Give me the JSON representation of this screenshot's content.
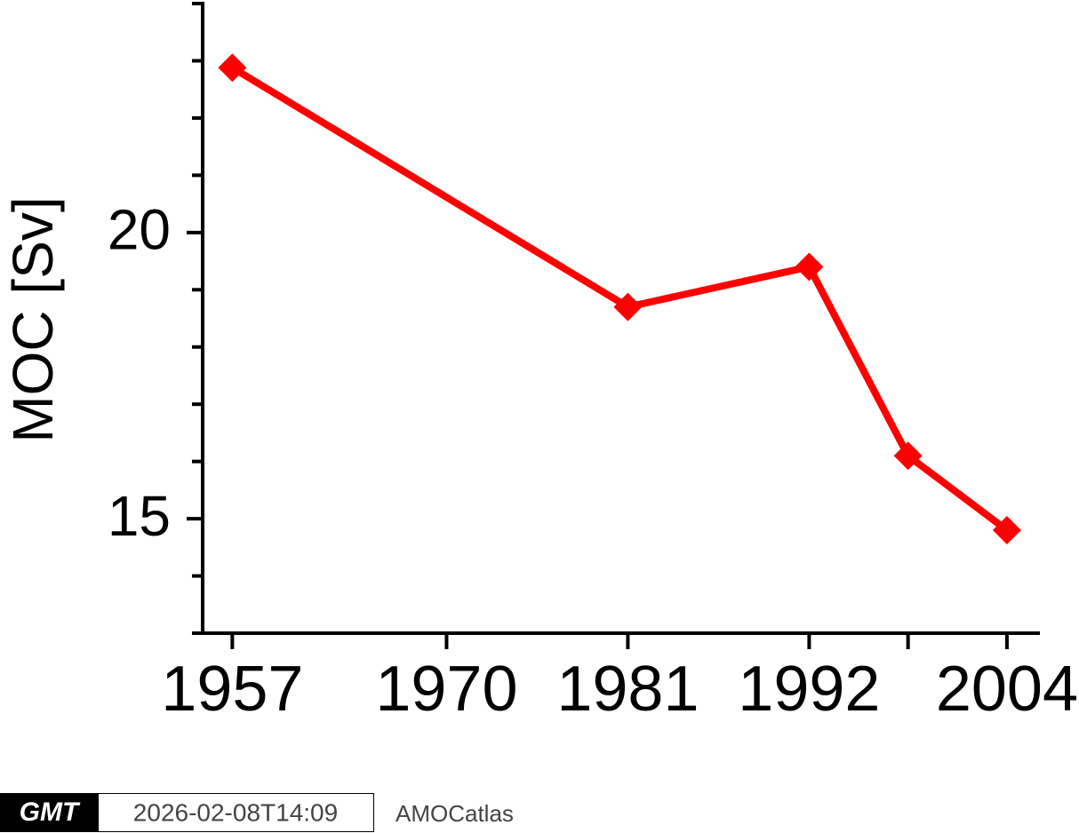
{
  "chart_data": {
    "type": "line",
    "y_label": "MOC [Sv]",
    "x": [
      1957,
      1981,
      1992,
      1998,
      2004
    ],
    "series": [
      {
        "color": "#ff0000",
        "values": [
          22.88,
          18.7,
          19.4,
          16.1,
          14.8
        ]
      }
    ],
    "xlim": [
      1955.2,
      2006
    ],
    "xticks": [
      1957,
      1970,
      1981,
      1992,
      {
        "value": 1998,
        "label": null
      },
      2004
    ],
    "ylim": [
      13,
      24
    ],
    "yticks": [
      15,
      20
    ],
    "yminorticks": [
      13,
      14,
      16,
      17,
      18,
      19,
      21,
      22,
      23,
      24
    ],
    "marker": "diamond"
  },
  "footer": {
    "logo": "GMT",
    "timestamp": "2026-02-08T14:09",
    "source": "AMOCatlas"
  }
}
